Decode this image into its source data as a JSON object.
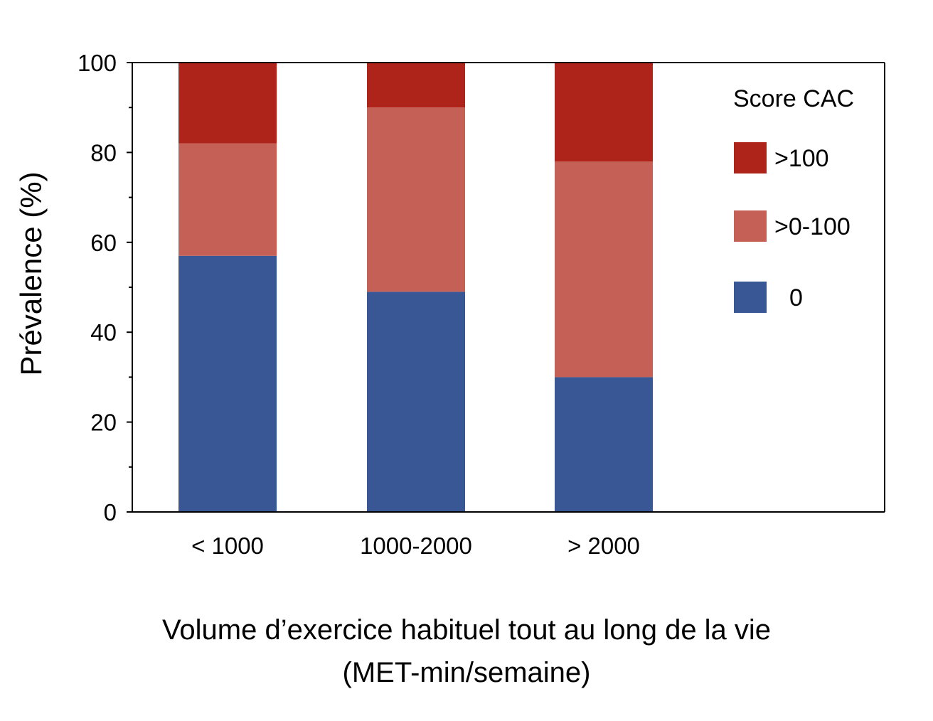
{
  "chart_data": {
    "type": "bar",
    "stacked": true,
    "categories": [
      "< 1000",
      "1000-2000",
      "> 2000"
    ],
    "series": [
      {
        "name": "0",
        "color": "#3A5795",
        "values": [
          57,
          49,
          30
        ]
      },
      {
        "name": ">0-100",
        "color": "#C46055",
        "values": [
          25,
          41,
          48
        ]
      },
      {
        "name": ">100",
        "color": "#AE241B",
        "values": [
          18,
          10,
          22
        ]
      }
    ],
    "ylabel": "Prévalence (%)",
    "xlabel_line1": "Volume d’exercice habituel tout au long de la vie",
    "xlabel_line2": "(MET-min/semaine)",
    "ylim": [
      0,
      100
    ],
    "yticks": [
      0,
      20,
      40,
      60,
      80,
      100
    ],
    "legend_title": "Score CAC",
    "legend_position": "top-right",
    "grid": false
  }
}
